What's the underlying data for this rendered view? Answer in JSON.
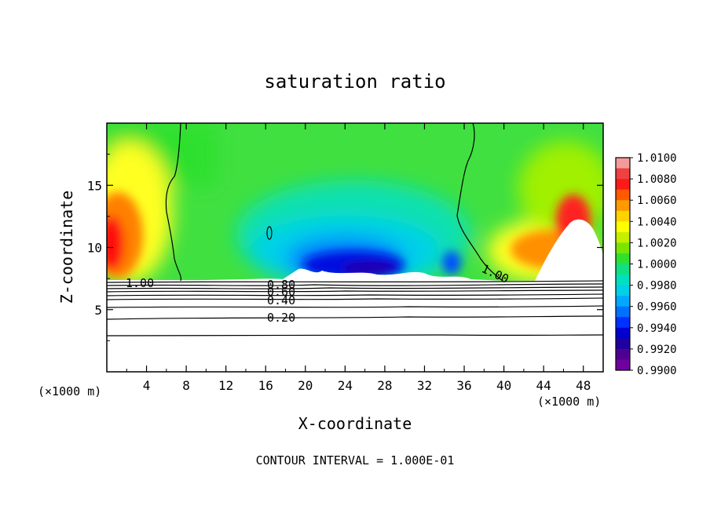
{
  "chart_data": {
    "type": "heatmap",
    "title": "saturation ratio",
    "xlabel": "X-coordinate",
    "ylabel": "Z-coordinate",
    "x_unit_label": "(×1000 m)",
    "y_unit_label": "(×1000 m)",
    "footer": "CONTOUR INTERVAL = 1.000E-01",
    "xlim": [
      0,
      50
    ],
    "ylim": [
      0,
      20
    ],
    "x_ticks": [
      "4",
      "8",
      "12",
      "16",
      "20",
      "24",
      "28",
      "32",
      "36",
      "40",
      "44",
      "48"
    ],
    "y_ticks": [
      "5",
      "10",
      "15"
    ],
    "colorbar": {
      "min": 0.99,
      "max": 1.01,
      "labels": [
        "1.0100",
        "1.0080",
        "1.0060",
        "1.0040",
        "1.0020",
        "1.0000",
        "0.9980",
        "0.9960",
        "0.9940",
        "0.9920",
        "0.9900"
      ],
      "colors": [
        "#f59a9a",
        "#f04040",
        "#ff1a1a",
        "#ff5a00",
        "#ff9a00",
        "#ffd200",
        "#ffff00",
        "#c4f000",
        "#7ae600",
        "#30e030",
        "#10e080",
        "#00e0c0",
        "#00d0e8",
        "#00a8ff",
        "#0070ff",
        "#0030ff",
        "#0000d0",
        "#2000a0",
        "#500090",
        "#7000a0"
      ]
    },
    "contour_labels": [
      "1.00",
      "0.80",
      "0.60",
      "0.40",
      "0.20",
      "1.00"
    ],
    "contour_levels": [
      0.1,
      0.2,
      0.3,
      0.4,
      0.5,
      0.6,
      0.7,
      0.8,
      0.9,
      1.0
    ]
  }
}
